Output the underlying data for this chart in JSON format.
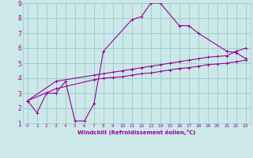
{
  "xlabel": "Windchill (Refroidissement éolien,°C)",
  "xlim": [
    -0.5,
    23.5
  ],
  "ylim": [
    1,
    9
  ],
  "xticks": [
    0,
    1,
    2,
    3,
    4,
    5,
    6,
    7,
    8,
    9,
    10,
    11,
    12,
    13,
    14,
    15,
    16,
    17,
    18,
    19,
    20,
    21,
    22,
    23
  ],
  "yticks": [
    1,
    2,
    3,
    4,
    5,
    6,
    7,
    8,
    9
  ],
  "bg_color": "#cce8e8",
  "line_color": "#990099",
  "grid_color": "#99cccc",
  "line1_x": [
    0,
    1,
    2,
    3,
    4,
    5,
    6,
    7,
    8,
    11,
    12,
    13,
    14,
    16,
    17,
    18,
    21,
    22,
    23
  ],
  "line1_y": [
    2.5,
    1.7,
    3.0,
    3.0,
    3.8,
    1.15,
    1.15,
    2.3,
    5.8,
    7.9,
    8.1,
    9.0,
    9.0,
    7.5,
    7.5,
    7.0,
    5.8,
    5.7,
    5.3
  ],
  "line2_x": [
    0,
    3,
    7,
    8,
    9,
    10,
    11,
    12,
    13,
    14,
    15,
    16,
    17,
    18,
    19,
    20,
    21,
    22,
    23
  ],
  "line2_y": [
    2.5,
    3.8,
    4.2,
    4.3,
    4.4,
    4.5,
    4.6,
    4.7,
    4.8,
    4.9,
    5.0,
    5.1,
    5.2,
    5.3,
    5.4,
    5.45,
    5.5,
    5.8,
    6.0
  ],
  "line3_x": [
    0,
    3,
    7,
    8,
    9,
    10,
    11,
    12,
    13,
    14,
    15,
    16,
    17,
    18,
    19,
    20,
    21,
    22,
    23
  ],
  "line3_y": [
    2.5,
    3.3,
    3.9,
    4.0,
    4.05,
    4.1,
    4.2,
    4.3,
    4.35,
    4.45,
    4.55,
    4.65,
    4.7,
    4.8,
    4.9,
    4.95,
    5.0,
    5.1,
    5.2
  ]
}
